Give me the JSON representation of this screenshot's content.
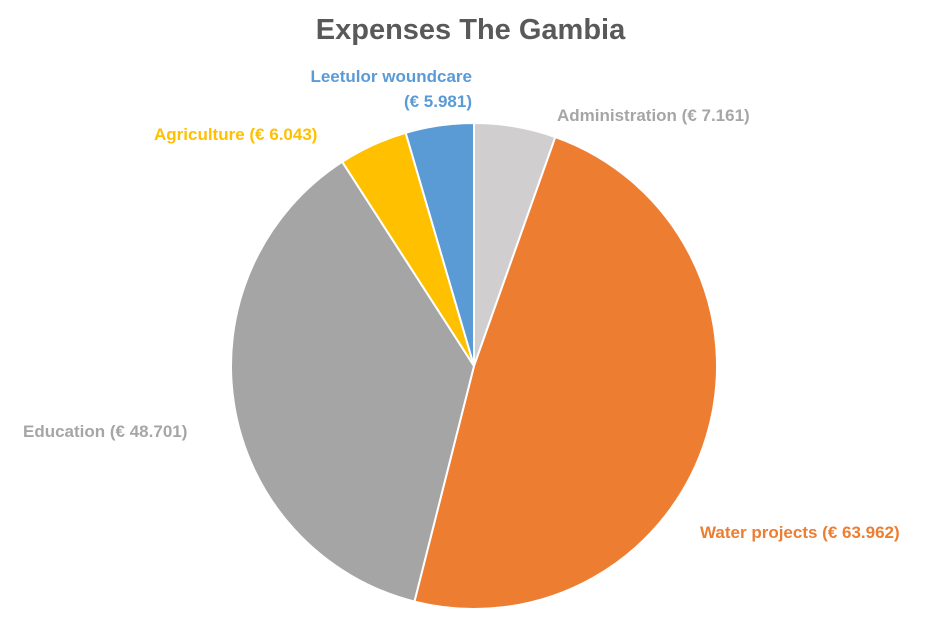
{
  "chart_data": {
    "type": "pie",
    "title": "Expenses The Gambia",
    "legend": "none (data labels on slices)",
    "slices": [
      {
        "label_lines": [
          "Administration (€ 7.161)"
        ],
        "value": 7161,
        "color": "#d0cece",
        "label_color": "#a6a6a6"
      },
      {
        "label_lines": [
          "Water projects (€ 63.962)"
        ],
        "value": 63962,
        "color": "#ed7d31",
        "label_color": "#ed7d31"
      },
      {
        "label_lines": [
          "Education (€ 48.701)"
        ],
        "value": 48701,
        "color": "#a5a5a5",
        "label_color": "#a6a6a6"
      },
      {
        "label_lines": [
          "Agriculture (€ 6.043)"
        ],
        "value": 6043,
        "color": "#ffc000",
        "label_color": "#ffc000"
      },
      {
        "label_lines": [
          "Leetulor woundcare",
          "(€ 5.981)"
        ],
        "value": 5981,
        "color": "#5b9bd5",
        "label_color": "#5b9bd5"
      }
    ]
  }
}
